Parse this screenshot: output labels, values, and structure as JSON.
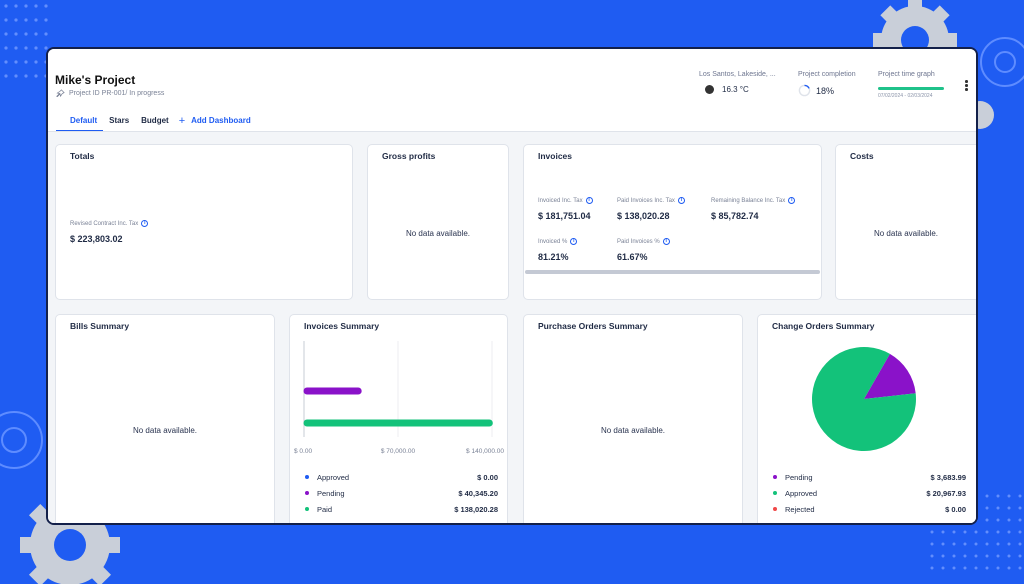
{
  "project": {
    "title": "Mike's Project",
    "subtitle": "Project ID PR-001/ In progress"
  },
  "tabs": [
    {
      "label": "Default",
      "active": true
    },
    {
      "label": "Stars"
    },
    {
      "label": "Budget"
    }
  ],
  "add_dashboard_label": "Add Dashboard",
  "weather": {
    "location": "Los Santos, Lakeside, ...",
    "temperature": "16.3 °C"
  },
  "completion": {
    "label": "Project completion",
    "value": "18%",
    "fraction": 0.18
  },
  "time_graph": {
    "label": "Project time graph",
    "dates": "07/02/2024 - 02/03/2024"
  },
  "cards": {
    "totals": {
      "title": "Totals",
      "metric_label": "Revised Contract Inc. Tax",
      "metric_value": "$ 223,803.02"
    },
    "gross_profits": {
      "title": "Gross profits",
      "no_data": "No data available."
    },
    "invoices": {
      "title": "Invoices",
      "metrics": [
        {
          "label": "Invoiced Inc. Tax",
          "value": "$ 181,751.04"
        },
        {
          "label": "Paid Invoices Inc. Tax",
          "value": "$ 138,020.28"
        },
        {
          "label": "Remaining Balance Inc. Tax",
          "value": "$ 85,782.74"
        },
        {
          "label": "Invoiced %",
          "value": "81.21%"
        },
        {
          "label": "Paid Invoices %",
          "value": "61.67%"
        }
      ]
    },
    "costs": {
      "title": "Costs",
      "no_data": "No data available."
    },
    "bills_summary": {
      "title": "Bills Summary",
      "no_data": "No data available."
    },
    "invoices_summary": {
      "title": "Invoices Summary",
      "legend": [
        {
          "name": "Approved",
          "value": "$ 0.00",
          "color": "#1f5cf2"
        },
        {
          "name": "Pending",
          "value": "$ 40,345.20",
          "color": "#8a12c9"
        },
        {
          "name": "Paid",
          "value": "$ 138,020.28",
          "color": "#13c27a"
        }
      ]
    },
    "purchase_orders_summary": {
      "title": "Purchase Orders Summary",
      "no_data": "No data available."
    },
    "change_orders_summary": {
      "title": "Change Orders Summary",
      "legend": [
        {
          "name": "Pending",
          "value": "$ 3,683.99",
          "color": "#8a12c9"
        },
        {
          "name": "Approved",
          "value": "$ 20,967.93",
          "color": "#13c27a"
        },
        {
          "name": "Rejected",
          "value": "$ 0.00",
          "color": "#f04848"
        }
      ]
    }
  },
  "chart_data": [
    {
      "type": "bar",
      "orientation": "horizontal",
      "categories": [
        "Pending",
        "Paid"
      ],
      "values": [
        40345.2,
        138020.28
      ],
      "colors": [
        "#8a12c9",
        "#13c27a"
      ],
      "xlim": [
        0,
        140000
      ],
      "tick_labels": [
        "$ 0.00",
        "$ 70,000.00",
        "$ 140,000.00"
      ]
    },
    {
      "type": "pie",
      "categories": [
        "Pending",
        "Approved",
        "Rejected"
      ],
      "values": [
        3683.99,
        20967.93,
        0
      ],
      "colors": [
        "#8a12c9",
        "#13c27a",
        "#f04848"
      ]
    }
  ]
}
